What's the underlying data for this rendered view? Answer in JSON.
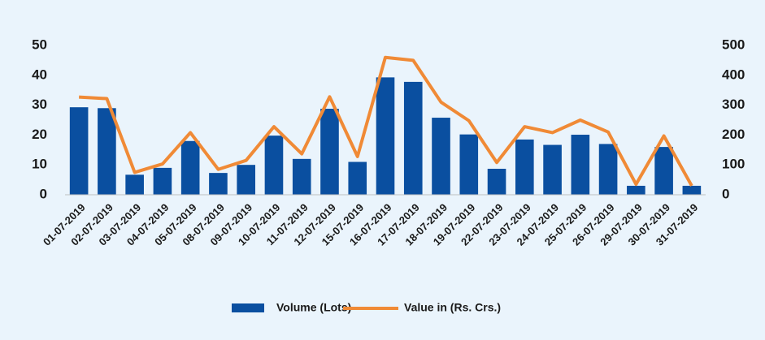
{
  "chart_data": {
    "type": "bar-line",
    "categories": [
      "01-07-2019",
      "02-07-2019",
      "03-07-2019",
      "04-07-2019",
      "05-07-2019",
      "08-07-2019",
      "09-07-2019",
      "10-07-2019",
      "11-07-2019",
      "12-07-2019",
      "15-07-2019",
      "16-07-2019",
      "17-07-2019",
      "18-07-2019",
      "19-07-2019",
      "22-07-2019",
      "23-07-2019",
      "24-07-2019",
      "25-07-2019",
      "26-07-2019",
      "29-07-2019",
      "30-07-2019",
      "31-07-2019"
    ],
    "series": [
      {
        "name": "Volume (Lots)",
        "type": "bar",
        "color": "#0a4fa0",
        "values": [
          29.3,
          29,
          6.7,
          9,
          18,
          7.3,
          10,
          19.8,
          12,
          28.8,
          11,
          39.3,
          37.8,
          25.8,
          20.2,
          8.7,
          18.5,
          16.7,
          20.1,
          17,
          3,
          16,
          3
        ]
      },
      {
        "name": "Value in (Rs. Crs.)",
        "type": "line",
        "axis": "y2",
        "color": "#f08a36",
        "values": [
          327,
          322,
          75,
          103,
          208,
          85,
          115,
          228,
          137,
          328,
          128,
          460,
          450,
          310,
          248,
          108,
          228,
          208,
          250,
          210,
          35,
          197,
          30
        ]
      }
    ],
    "ylim": [
      0,
      50
    ],
    "yticks": [
      0,
      10,
      20,
      30,
      40,
      50
    ],
    "y2lim": [
      0,
      500
    ],
    "y2ticks": [
      0,
      100,
      200,
      300,
      400,
      500
    ],
    "grid": false,
    "legend": "bottom"
  }
}
